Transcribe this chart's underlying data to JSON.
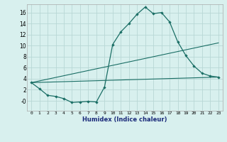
{
  "xlabel": "Humidex (Indice chaleur)",
  "background_color": "#d8f0ee",
  "grid_color": "#b8d8d5",
  "line_color": "#1a6e65",
  "xlim": [
    -0.5,
    23.5
  ],
  "ylim": [
    -1.8,
    17.5
  ],
  "xticks": [
    0,
    1,
    2,
    3,
    4,
    5,
    6,
    7,
    8,
    9,
    10,
    11,
    12,
    13,
    14,
    15,
    16,
    17,
    18,
    19,
    20,
    21,
    22,
    23
  ],
  "yticks": [
    0,
    2,
    4,
    6,
    8,
    10,
    12,
    14,
    16
  ],
  "ytick_labels": [
    "-0",
    "2",
    "4",
    "6",
    "8",
    "10",
    "12",
    "14",
    "16"
  ],
  "line1_x": [
    0,
    1,
    2,
    3,
    4,
    5,
    6,
    7,
    8,
    9,
    10,
    11,
    12,
    13,
    14,
    15,
    16,
    17,
    18,
    19,
    20,
    21,
    22,
    23
  ],
  "line1_y": [
    3.3,
    2.2,
    1.0,
    0.8,
    0.4,
    -0.3,
    -0.2,
    -0.1,
    -0.2,
    2.5,
    10.2,
    12.5,
    14.0,
    15.7,
    17.0,
    15.8,
    16.0,
    14.3,
    10.7,
    8.2,
    6.3,
    5.0,
    4.5,
    4.3
  ],
  "line2_x": [
    0,
    23
  ],
  "line2_y": [
    3.3,
    10.5
  ],
  "line3_x": [
    0,
    23
  ],
  "line3_y": [
    3.3,
    4.3
  ]
}
